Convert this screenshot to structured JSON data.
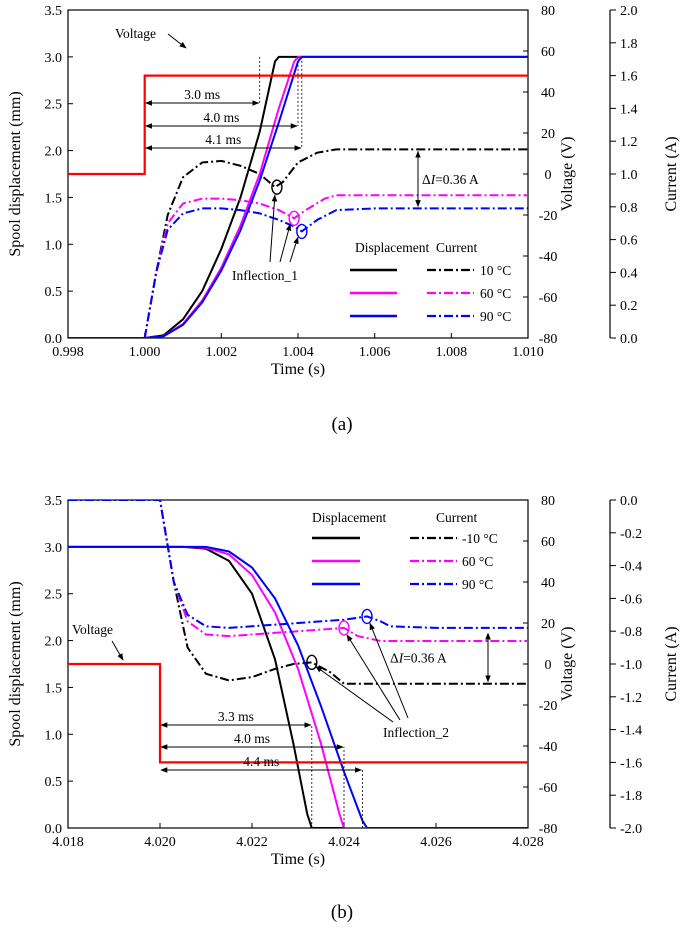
{
  "chart_data": [
    {
      "type": "line",
      "caption": "(a)",
      "xlabel": "Time (s)",
      "ylabel": "Spool displacement (mm)",
      "y2label": "Voltage (V)",
      "y3label": "Current (A)",
      "xlim": [
        0.998,
        1.01
      ],
      "ylim": [
        0,
        3.5
      ],
      "y2lim": [
        -80,
        80
      ],
      "y3lim": [
        0,
        2.0
      ],
      "xticks": [
        "0.998",
        "1.000",
        "1.002",
        "1.004",
        "1.006",
        "1.008",
        "1.010"
      ],
      "yticks": [
        "0.0",
        "0.5",
        "1.0",
        "1.5",
        "2.0",
        "2.5",
        "3.0",
        "3.5"
      ],
      "y2ticks": [
        "-80",
        "-60",
        "-40",
        "-20",
        "0",
        "20",
        "40",
        "60",
        "80"
      ],
      "y3ticks": [
        "0.0",
        "0.2",
        "0.4",
        "0.6",
        "0.8",
        "1.0",
        "1.2",
        "1.4",
        "1.6",
        "1.8",
        "2.0"
      ],
      "legend": {
        "header_displacement": "Displacement",
        "header_current": "Current",
        "placement": "bottom-right"
      },
      "series": [
        {
          "name": "10 °C",
          "color": "#000000",
          "displacement": {
            "x": [
              0.998,
              1.0,
              1.0005,
              1.001,
              1.0015,
              1.002,
              1.0025,
              1.003,
              1.0034,
              1.0035,
              1.01
            ],
            "y": [
              0,
              0,
              0.03,
              0.2,
              0.5,
              0.95,
              1.5,
              2.2,
              2.95,
              3.0,
              3.0
            ]
          },
          "current": {
            "x": [
              1.0,
              1.0003,
              1.0006,
              1.001,
              1.0015,
              1.002,
              1.0025,
              1.003,
              1.0034,
              1.0036,
              1.004,
              1.0045,
              1.005,
              1.006,
              1.007,
              1.01
            ],
            "y": [
              0,
              0.4,
              0.75,
              0.98,
              1.07,
              1.08,
              1.05,
              1.0,
              0.92,
              0.95,
              1.07,
              1.13,
              1.15,
              1.15,
              1.15,
              1.15
            ]
          }
        },
        {
          "name": "60 °C",
          "color": "#ff00ff",
          "displacement": {
            "x": [
              0.998,
              1.0,
              1.0005,
              1.001,
              1.0015,
              1.002,
              1.0025,
              1.003,
              1.0035,
              1.0039,
              1.004,
              1.01
            ],
            "y": [
              0,
              0,
              0.02,
              0.15,
              0.4,
              0.75,
              1.2,
              1.75,
              2.45,
              2.95,
              3.0,
              3.0
            ]
          },
          "current": {
            "x": [
              1.0,
              1.0003,
              1.0006,
              1.001,
              1.0015,
              1.002,
              1.0025,
              1.003,
              1.0035,
              1.0039,
              1.0042,
              1.0047,
              1.005,
              1.006,
              1.01
            ],
            "y": [
              0,
              0.4,
              0.7,
              0.82,
              0.85,
              0.85,
              0.84,
              0.82,
              0.78,
              0.73,
              0.78,
              0.85,
              0.87,
              0.87,
              0.87
            ]
          }
        },
        {
          "name": "90 °C",
          "color": "#0000ff",
          "displacement": {
            "x": [
              0.998,
              1.0,
              1.0005,
              1.001,
              1.0015,
              1.002,
              1.0025,
              1.003,
              1.0035,
              1.004,
              1.0041,
              1.01
            ],
            "y": [
              0,
              0,
              0.02,
              0.14,
              0.38,
              0.72,
              1.15,
              1.68,
              2.3,
              2.95,
              3.0,
              3.0
            ]
          },
          "current": {
            "x": [
              1.0,
              1.0003,
              1.0006,
              1.001,
              1.0015,
              1.002,
              1.0025,
              1.003,
              1.0035,
              1.0039,
              1.0041,
              1.0045,
              1.005,
              1.006,
              1.01
            ],
            "y": [
              0,
              0.4,
              0.66,
              0.76,
              0.79,
              0.79,
              0.78,
              0.76,
              0.72,
              0.68,
              0.65,
              0.72,
              0.78,
              0.79,
              0.79
            ]
          }
        },
        {
          "name": "Voltage",
          "color": "#ff0000",
          "voltage": {
            "x": [
              0.998,
              1.0,
              1.0,
              1.01
            ],
            "y": [
              0,
              0,
              48,
              48
            ]
          }
        }
      ],
      "annotations": {
        "voltage_label": "Voltage",
        "times": [
          "3.0 ms",
          "4.0 ms",
          "4.1 ms"
        ],
        "time_values_s": [
          1.003,
          1.004,
          1.0041
        ],
        "delta_prefix": "Δ",
        "delta_symbol": "I",
        "delta_value": "=0.36 A",
        "inflection": "Inflection_1"
      }
    },
    {
      "type": "line",
      "caption": "(b)",
      "xlabel": "Time (s)",
      "ylabel": "Spool displacement (mm)",
      "y2label": "Voltage (V)",
      "y3label": "Current (A)",
      "xlim": [
        4.018,
        4.028
      ],
      "ylim": [
        0,
        3.5
      ],
      "y2lim": [
        -80,
        80
      ],
      "y3lim": [
        -2.0,
        0
      ],
      "xticks": [
        "4.018",
        "4.020",
        "4.022",
        "4.024",
        "4.026",
        "4.028"
      ],
      "yticks": [
        "0.0",
        "0.5",
        "1.0",
        "1.5",
        "2.0",
        "2.5",
        "3.0",
        "3.5"
      ],
      "y2ticks": [
        "-80",
        "-60",
        "-40",
        "-20",
        "0",
        "20",
        "40",
        "60",
        "80"
      ],
      "y3ticks": [
        "-2.0",
        "-1.8",
        "-1.6",
        "-1.4",
        "-1.2",
        "-1.0",
        "-0.8",
        "-0.6",
        "-0.4",
        "-0.2",
        "0.0"
      ],
      "legend": {
        "header_displacement": "Displacement",
        "header_current": "Current",
        "placement": "top-right"
      },
      "series": [
        {
          "name": "-10 °C",
          "color": "#000000",
          "displacement": {
            "x": [
              4.018,
              4.0205,
              4.021,
              4.0215,
              4.022,
              4.0225,
              4.0229,
              4.0232,
              4.0233,
              4.028
            ],
            "y": [
              3.0,
              3.0,
              2.98,
              2.85,
              2.5,
              1.8,
              0.9,
              0.15,
              0,
              0
            ]
          },
          "current": {
            "x": [
              4.018,
              4.02,
              4.0203,
              4.0206,
              4.021,
              4.0215,
              4.022,
              4.0225,
              4.0229,
              4.0233,
              4.0237,
              4.024,
              4.025,
              4.028
            ],
            "y": [
              0.0,
              0.0,
              -0.5,
              -0.9,
              -1.06,
              -1.1,
              -1.08,
              -1.03,
              -1.0,
              -0.99,
              -1.05,
              -1.12,
              -1.12,
              -1.12
            ]
          }
        },
        {
          "name": "60 °C",
          "color": "#ff00ff",
          "displacement": {
            "x": [
              4.018,
              4.0205,
              4.021,
              4.0215,
              4.022,
              4.0225,
              4.023,
              4.0235,
              4.0239,
              4.024,
              4.028
            ],
            "y": [
              3.0,
              3.0,
              2.99,
              2.92,
              2.7,
              2.3,
              1.7,
              0.9,
              0.15,
              0,
              0
            ]
          },
          "current": {
            "x": [
              4.018,
              4.02,
              4.0203,
              4.0206,
              4.021,
              4.0215,
              4.022,
              4.023,
              4.0235,
              4.024,
              4.0243,
              4.0248,
              4.025,
              4.028
            ],
            "y": [
              0.0,
              0.0,
              -0.5,
              -0.74,
              -0.82,
              -0.83,
              -0.82,
              -0.8,
              -0.79,
              -0.78,
              -0.83,
              -0.86,
              -0.86,
              -0.86
            ]
          }
        },
        {
          "name": "90 °C",
          "color": "#0000ff",
          "displacement": {
            "x": [
              4.018,
              4.0205,
              4.021,
              4.0215,
              4.022,
              4.0225,
              4.023,
              4.0235,
              4.024,
              4.0244,
              4.0245,
              4.028
            ],
            "y": [
              3.0,
              3.0,
              3.0,
              2.95,
              2.78,
              2.45,
              1.95,
              1.3,
              0.6,
              0.08,
              0,
              0
            ]
          },
          "current": {
            "x": [
              4.018,
              4.02,
              4.0203,
              4.0206,
              4.021,
              4.0215,
              4.022,
              4.023,
              4.024,
              4.0245,
              4.0248,
              4.025,
              4.026,
              4.028
            ],
            "y": [
              0.0,
              0.0,
              -0.5,
              -0.7,
              -0.77,
              -0.78,
              -0.77,
              -0.75,
              -0.73,
              -0.71,
              -0.74,
              -0.77,
              -0.78,
              -0.78
            ]
          }
        },
        {
          "name": "Voltage",
          "color": "#ff0000",
          "voltage": {
            "x": [
              4.018,
              4.02,
              4.02,
              4.028
            ],
            "y": [
              0,
              0,
              -48,
              -48
            ]
          }
        }
      ],
      "annotations": {
        "voltage_label": "Voltage",
        "times": [
          "3.3 ms",
          "4.0 ms",
          "4.4 ms"
        ],
        "time_values_s": [
          4.0233,
          4.024,
          4.0244
        ],
        "delta_prefix": "Δ",
        "delta_symbol": "I",
        "delta_value": "=0.36 A",
        "inflection": "Inflection_2"
      }
    }
  ]
}
